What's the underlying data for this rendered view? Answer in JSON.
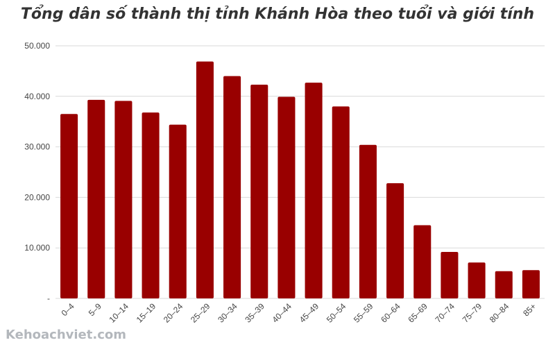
{
  "chart_data": {
    "type": "bar",
    "title": "Tổng dân số thành thị tỉnh Khánh Hòa theo tuổi và giới tính",
    "categories": [
      "0–4",
      "5–9",
      "10–14",
      "15–19",
      "20–24",
      "25–29",
      "30–34",
      "35–39",
      "40–44",
      "45–49",
      "50–54",
      "55–59",
      "60–64",
      "65–69",
      "70–74",
      "75–79",
      "80–84",
      "85+"
    ],
    "values": [
      36500,
      39300,
      39100,
      36800,
      34400,
      46900,
      44000,
      42300,
      39900,
      42700,
      38000,
      30400,
      22800,
      14500,
      9200,
      7100,
      5400,
      5600
    ],
    "ylim": [
      0,
      50000
    ],
    "yticks": [
      0,
      10000,
      20000,
      30000,
      40000,
      50000
    ],
    "ytick_labels": [
      "-",
      "10.000",
      "20.000",
      "30.000",
      "40.000",
      "50.000"
    ],
    "grid": true,
    "bar_color": "#990000",
    "xlabel": "",
    "ylabel": ""
  },
  "watermark": "Kehoachviet.com"
}
